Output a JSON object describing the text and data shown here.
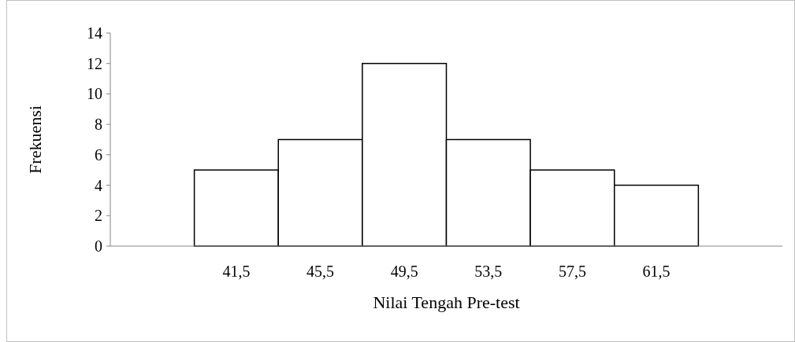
{
  "chart_data": {
    "type": "bar",
    "xlabel": "Nilai Tengah Pre-test",
    "ylabel": "Frekuensi",
    "categories": [
      null,
      "41,5",
      "45,5",
      "49,5",
      "53,5",
      "57,5",
      "61,5",
      null
    ],
    "values": [
      null,
      5,
      7,
      12,
      7,
      5,
      4,
      null
    ],
    "color": "#ffffff",
    "ylim": [
      0,
      14
    ],
    "yticks": [
      0,
      2,
      4,
      6,
      8,
      10,
      12,
      14
    ],
    "grid": false
  }
}
